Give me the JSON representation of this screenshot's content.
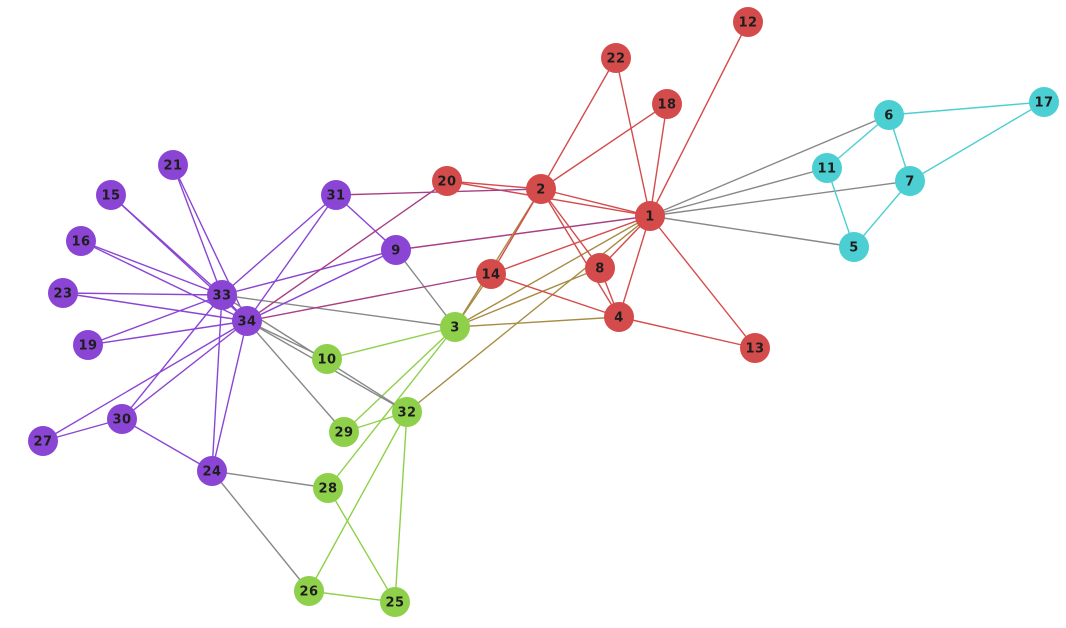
{
  "group_colors": {
    "red": "#d44b4b",
    "cyan": "#4ccfd2",
    "purple": "#8a45d4",
    "green": "#8fd04b"
  },
  "mixed_edge_colors": {
    "red|green": "#a88c44",
    "red|purple": "#a83f86",
    "default": "#888888"
  },
  "nodes": [
    {
      "id": "1",
      "group": "red"
    },
    {
      "id": "2",
      "group": "red"
    },
    {
      "id": "3",
      "group": "green"
    },
    {
      "id": "4",
      "group": "red"
    },
    {
      "id": "5",
      "group": "cyan"
    },
    {
      "id": "6",
      "group": "cyan"
    },
    {
      "id": "7",
      "group": "cyan"
    },
    {
      "id": "8",
      "group": "red"
    },
    {
      "id": "9",
      "group": "purple"
    },
    {
      "id": "10",
      "group": "green"
    },
    {
      "id": "11",
      "group": "cyan"
    },
    {
      "id": "12",
      "group": "red"
    },
    {
      "id": "13",
      "group": "red"
    },
    {
      "id": "14",
      "group": "red"
    },
    {
      "id": "15",
      "group": "purple"
    },
    {
      "id": "16",
      "group": "purple"
    },
    {
      "id": "17",
      "group": "cyan"
    },
    {
      "id": "18",
      "group": "red"
    },
    {
      "id": "19",
      "group": "purple"
    },
    {
      "id": "20",
      "group": "red"
    },
    {
      "id": "21",
      "group": "purple"
    },
    {
      "id": "22",
      "group": "red"
    },
    {
      "id": "23",
      "group": "purple"
    },
    {
      "id": "24",
      "group": "purple"
    },
    {
      "id": "25",
      "group": "green"
    },
    {
      "id": "26",
      "group": "green"
    },
    {
      "id": "27",
      "group": "purple"
    },
    {
      "id": "28",
      "group": "green"
    },
    {
      "id": "29",
      "group": "green"
    },
    {
      "id": "30",
      "group": "purple"
    },
    {
      "id": "31",
      "group": "purple"
    },
    {
      "id": "32",
      "group": "green"
    },
    {
      "id": "33",
      "group": "purple"
    },
    {
      "id": "34",
      "group": "purple"
    }
  ],
  "edges": [
    [
      "1",
      "2"
    ],
    [
      "1",
      "3"
    ],
    [
      "1",
      "4"
    ],
    [
      "1",
      "5"
    ],
    [
      "1",
      "6"
    ],
    [
      "1",
      "7"
    ],
    [
      "1",
      "8"
    ],
    [
      "1",
      "9"
    ],
    [
      "1",
      "11"
    ],
    [
      "1",
      "12"
    ],
    [
      "1",
      "13"
    ],
    [
      "1",
      "14"
    ],
    [
      "1",
      "18"
    ],
    [
      "1",
      "20"
    ],
    [
      "1",
      "22"
    ],
    [
      "1",
      "32"
    ],
    [
      "2",
      "3"
    ],
    [
      "2",
      "4"
    ],
    [
      "2",
      "8"
    ],
    [
      "2",
      "14"
    ],
    [
      "2",
      "18"
    ],
    [
      "2",
      "20"
    ],
    [
      "2",
      "22"
    ],
    [
      "2",
      "31"
    ],
    [
      "3",
      "4"
    ],
    [
      "3",
      "8"
    ],
    [
      "3",
      "9"
    ],
    [
      "3",
      "10"
    ],
    [
      "3",
      "14"
    ],
    [
      "3",
      "28"
    ],
    [
      "3",
      "29"
    ],
    [
      "3",
      "33"
    ],
    [
      "4",
      "8"
    ],
    [
      "4",
      "13"
    ],
    [
      "4",
      "14"
    ],
    [
      "5",
      "7"
    ],
    [
      "5",
      "11"
    ],
    [
      "6",
      "7"
    ],
    [
      "6",
      "11"
    ],
    [
      "6",
      "17"
    ],
    [
      "7",
      "17"
    ],
    [
      "9",
      "31"
    ],
    [
      "9",
      "33"
    ],
    [
      "9",
      "34"
    ],
    [
      "10",
      "34"
    ],
    [
      "14",
      "34"
    ],
    [
      "15",
      "33"
    ],
    [
      "15",
      "34"
    ],
    [
      "16",
      "33"
    ],
    [
      "16",
      "34"
    ],
    [
      "19",
      "33"
    ],
    [
      "19",
      "34"
    ],
    [
      "20",
      "34"
    ],
    [
      "21",
      "33"
    ],
    [
      "21",
      "34"
    ],
    [
      "23",
      "33"
    ],
    [
      "23",
      "34"
    ],
    [
      "24",
      "26"
    ],
    [
      "24",
      "28"
    ],
    [
      "24",
      "30"
    ],
    [
      "24",
      "33"
    ],
    [
      "24",
      "34"
    ],
    [
      "25",
      "26"
    ],
    [
      "25",
      "28"
    ],
    [
      "25",
      "32"
    ],
    [
      "26",
      "32"
    ],
    [
      "27",
      "30"
    ],
    [
      "27",
      "34"
    ],
    [
      "29",
      "32"
    ],
    [
      "29",
      "34"
    ],
    [
      "30",
      "33"
    ],
    [
      "30",
      "34"
    ],
    [
      "31",
      "33"
    ],
    [
      "31",
      "34"
    ],
    [
      "32",
      "33"
    ],
    [
      "32",
      "34"
    ],
    [
      "33",
      "34"
    ]
  ]
}
